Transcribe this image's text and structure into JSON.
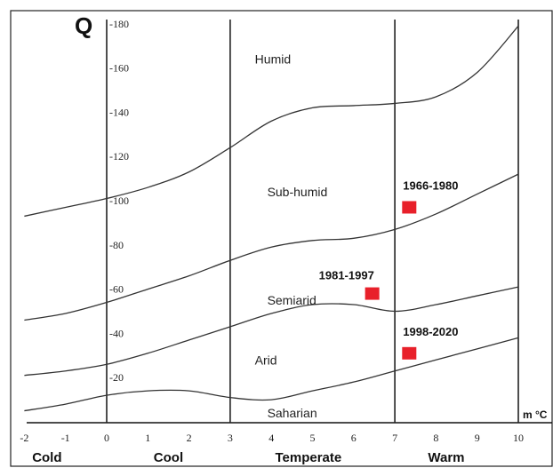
{
  "chart_data": {
    "type": "line",
    "ylabel": "Q",
    "xlabel": "m °C",
    "xlim": [
      -2,
      10
    ],
    "ylim": [
      0,
      180
    ],
    "x_ticks": [
      "-2",
      "-1",
      "0",
      "1",
      "2",
      "3",
      "4",
      "5",
      "6",
      "7",
      "8",
      "9",
      "10"
    ],
    "y_ticks": [
      "-20",
      "-40",
      "-60",
      "-80",
      "-100",
      "-120",
      "-140",
      "-160",
      "-180"
    ],
    "y_tick_values": [
      20,
      40,
      60,
      80,
      100,
      120,
      140,
      160,
      180
    ],
    "vertical_lines_x": [
      0,
      3,
      7,
      10
    ],
    "boundaries": [
      {
        "x": [
          -2,
          -1,
          0,
          1,
          2,
          3,
          4,
          5,
          6,
          7,
          8,
          9,
          10
        ],
        "y": [
          93,
          97,
          101,
          106,
          113,
          124,
          136,
          142,
          143,
          144,
          147,
          158,
          179
        ]
      },
      {
        "x": [
          -2,
          -1,
          0,
          1,
          2,
          3,
          4,
          5,
          6,
          7,
          8,
          9,
          10
        ],
        "y": [
          46,
          49,
          54,
          60,
          66,
          73,
          79,
          82,
          83,
          87,
          94,
          103,
          112
        ]
      },
      {
        "x": [
          -2,
          -1,
          0,
          1,
          2,
          3,
          4,
          5,
          6,
          7,
          8,
          9,
          10
        ],
        "y": [
          21,
          23,
          26,
          31,
          37,
          43,
          49,
          53,
          53,
          50,
          53,
          57,
          61
        ]
      },
      {
        "x": [
          -2,
          -1,
          0,
          1,
          2,
          3,
          4,
          5,
          6,
          7,
          8,
          9,
          10
        ],
        "y": [
          5,
          8,
          12,
          14,
          14,
          11,
          10,
          14,
          18,
          23,
          28,
          33,
          38
        ]
      }
    ],
    "zones": [
      {
        "label": "Humid",
        "x": 3.6,
        "y": 164
      },
      {
        "label": "Sub-humid",
        "x": 3.9,
        "y": 104
      },
      {
        "label": "Semiarid",
        "x": 3.9,
        "y": 55
      },
      {
        "label": "Arid",
        "x": 3.6,
        "y": 28
      },
      {
        "label": "Saharian",
        "x": 3.9,
        "y": 4
      }
    ],
    "points": [
      {
        "label": "1966-1980",
        "x": 7.35,
        "y": 97,
        "color": "#e8202a"
      },
      {
        "label": "1981-1997",
        "x": 6.45,
        "y": 58,
        "color": "#e8202a"
      },
      {
        "label": "1998-2020",
        "x": 7.35,
        "y": 31,
        "color": "#e8202a"
      }
    ],
    "climate_labels": [
      {
        "label": "Cold",
        "x": -1.45
      },
      {
        "label": "Cool",
        "x": 1.5
      },
      {
        "label": "Temperate",
        "x": 4.9
      },
      {
        "label": "Warm",
        "x": 8.25
      }
    ]
  }
}
